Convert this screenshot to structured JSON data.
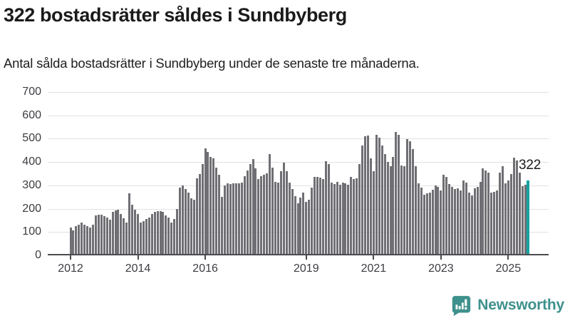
{
  "header": {
    "title": "322 bostadsrätter såldes i Sundbyberg",
    "subtitle": "Antal sålda bostadsrätter i Sundbyberg under de senaste tre månaderna."
  },
  "chart_data": {
    "type": "bar",
    "title": "322 bostadsrätter såldes i Sundbyberg",
    "series_name": "Antal sålda bostadsrätter (rullande tre månader)",
    "start_month": "2012-01",
    "end_month": "2025-08",
    "values": [
      118,
      108,
      124,
      133,
      140,
      133,
      124,
      118,
      133,
      172,
      175,
      174,
      168,
      161,
      152,
      186,
      192,
      195,
      177,
      158,
      142,
      265,
      218,
      196,
      176,
      142,
      148,
      155,
      163,
      176,
      187,
      190,
      191,
      188,
      170,
      163,
      142,
      157,
      200,
      290,
      300,
      285,
      270,
      245,
      240,
      330,
      348,
      390,
      458,
      443,
      423,
      415,
      376,
      345,
      250,
      300,
      310,
      305,
      310,
      308,
      310,
      312,
      340,
      365,
      390,
      412,
      374,
      328,
      338,
      347,
      351,
      434,
      376,
      315,
      311,
      361,
      397,
      361,
      311,
      284,
      254,
      223,
      249,
      269,
      230,
      238,
      292,
      336,
      336,
      334,
      326,
      405,
      391,
      311,
      307,
      316,
      304,
      313,
      308,
      302,
      336,
      326,
      330,
      390,
      470,
      510,
      515,
      417,
      361,
      516,
      505,
      470,
      435,
      402,
      381,
      422,
      529,
      516,
      385,
      383,
      498,
      488,
      455,
      383,
      310,
      292,
      259,
      266,
      270,
      280,
      300,
      295,
      279,
      347,
      337,
      305,
      295,
      285,
      288,
      279,
      321,
      311,
      268,
      258,
      288,
      295,
      315,
      373,
      363,
      356,
      268,
      272,
      279,
      356,
      381,
      308,
      321,
      350,
      420,
      406,
      356,
      298,
      302,
      322
    ],
    "highlight_index": 163,
    "highlight_label": "322",
    "bar_color": "#6f6f74",
    "highlight_color": "#16a2a2",
    "y_ticks": [
      0,
      100,
      200,
      300,
      400,
      500,
      600,
      700
    ],
    "ylim": [
      0,
      700
    ],
    "x_ticks": [
      {
        "label": "2012",
        "month": 0
      },
      {
        "label": "2014",
        "month": 24
      },
      {
        "label": "2016",
        "month": 48
      },
      {
        "label": "2019",
        "month": 84
      },
      {
        "label": "2021",
        "month": 108
      },
      {
        "label": "2023",
        "month": 132
      },
      {
        "label": "2025",
        "month": 156
      }
    ],
    "grid": "horizontal",
    "legend": "none"
  },
  "annotation": {
    "text": "322"
  },
  "footer": {
    "brand": "Newsworthy",
    "brand_color": "#3e918d",
    "logo_icon": "bar-chart-speech-bubble-icon"
  }
}
